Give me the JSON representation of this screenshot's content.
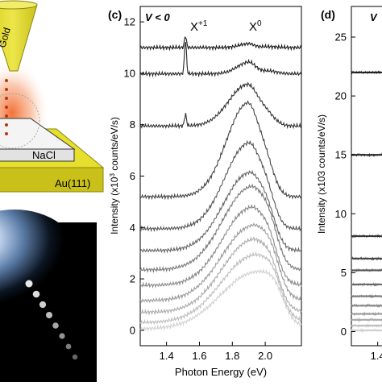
{
  "colors": {
    "gold": "#E6DF2E",
    "gold_dark": "#B8B018",
    "glow": "#F26A2E",
    "panel_black": "#000000"
  },
  "schematic": {
    "tip_label": "Gold",
    "crystal_label": "NaCl",
    "substrate_label": "Au(111)"
  },
  "panel_c": {
    "letter": "(c)",
    "condition": "V < 0",
    "peak_x1_base": "X",
    "peak_x1_sup": "+1",
    "peak_x0_base": "X",
    "peak_x0_sup": "0",
    "ylabel_parts": [
      "Intensity (x10",
      "3",
      " counts/eV/s)"
    ]
  },
  "panel_d": {
    "letter": "(d)",
    "condition": "V"
  },
  "chart_data": [
    {
      "type": "line",
      "panel": "(c)",
      "xlabel": "Photon Energy (eV)",
      "ylabel": "Intensity (x10^3 counts/eV/s)",
      "xlim": [
        1.24,
        2.22
      ],
      "ylim": [
        -0.6,
        12.6
      ],
      "xticks": [
        "1.4",
        "1.6",
        "1.8",
        "2.0"
      ],
      "yticks": [
        "0",
        "2",
        "4",
        "6",
        "8",
        "10",
        "12"
      ],
      "grid": false,
      "annotations": [
        "V < 0",
        "X+1",
        "X0"
      ],
      "series": [
        {
          "base": 11.0,
          "x1_amp": 0.45,
          "x0_amp": 0.15,
          "x0_width": 0.04,
          "x0_center": 1.9,
          "color": "#1a1a1a"
        },
        {
          "base": 9.98,
          "x1_amp": 1.3,
          "x0_amp": 0.45,
          "x0_width": 0.05,
          "x0_center": 1.9,
          "color": "#262626"
        },
        {
          "base": 7.95,
          "x1_amp": 0.45,
          "x0_amp": 1.6,
          "x0_width": 0.08,
          "x0_center": 1.89,
          "color": "#333333"
        },
        {
          "base": 5.2,
          "x1_amp": 0,
          "x0_amp": 3.6,
          "x0_width": 0.09,
          "x0_center": 1.89,
          "color": "#444444"
        },
        {
          "base": 3.95,
          "x1_amp": 0,
          "x0_amp": 3.3,
          "x0_width": 0.1,
          "x0_center": 1.895,
          "color": "#555555"
        },
        {
          "base": 3.1,
          "x1_amp": 0,
          "x0_amp": 3.0,
          "x0_width": 0.11,
          "x0_center": 1.9,
          "color": "#666666"
        },
        {
          "base": 2.35,
          "x1_amp": 0,
          "x0_amp": 3.2,
          "x0_width": 0.12,
          "x0_center": 1.91,
          "color": "#777777"
        },
        {
          "base": 1.75,
          "x1_amp": 0,
          "x0_amp": 3.0,
          "x0_width": 0.12,
          "x0_center": 1.91,
          "color": "#888888"
        },
        {
          "base": 1.15,
          "x1_amp": 0,
          "x0_amp": 2.9,
          "x0_width": 0.13,
          "x0_center": 1.92,
          "color": "#9a9a9a"
        },
        {
          "base": 0.7,
          "x1_amp": 0,
          "x0_amp": 2.8,
          "x0_width": 0.13,
          "x0_center": 1.92,
          "color": "#ababab"
        },
        {
          "base": 0.3,
          "x1_amp": 0,
          "x0_amp": 2.6,
          "x0_width": 0.14,
          "x0_center": 1.93,
          "color": "#bdbdbd"
        },
        {
          "base": 0.05,
          "x1_amp": 0,
          "x0_amp": 2.2,
          "x0_width": 0.15,
          "x0_center": 1.94,
          "color": "#d0d0d0"
        }
      ]
    },
    {
      "type": "line",
      "panel": "(d)",
      "xlim": [
        1.24,
        2.22
      ],
      "ylim": [
        -1.2,
        27.6
      ],
      "xticks": [
        "1.4"
      ],
      "yticks": [
        "0",
        "5",
        "10",
        "15",
        "20",
        "25"
      ],
      "grid": false,
      "annotations": [
        "V"
      ],
      "series": [
        {
          "base": 22.0,
          "color": "#1a1a1a"
        },
        {
          "base": 15.0,
          "color": "#262626"
        },
        {
          "base": 8.1,
          "color": "#333333"
        },
        {
          "base": 6.2,
          "color": "#444444"
        },
        {
          "base": 5.2,
          "color": "#555555"
        },
        {
          "base": 4.0,
          "color": "#666666"
        },
        {
          "base": 3.0,
          "color": "#777777"
        },
        {
          "base": 2.2,
          "color": "#888888"
        },
        {
          "base": 1.5,
          "color": "#9a9a9a"
        },
        {
          "base": 1.0,
          "color": "#ababab"
        },
        {
          "base": 0.5,
          "color": "#bdbdbd"
        },
        {
          "base": 0.1,
          "color": "#d0d0d0"
        }
      ]
    }
  ]
}
